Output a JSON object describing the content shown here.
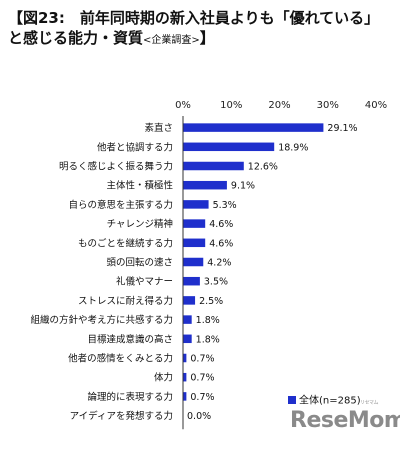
{
  "title": {
    "line1": "【図23:　前年同時期の新入社員よりも「優れている」",
    "line2": "と感じる能力・資質",
    "line2_sub": "<企業調査>",
    "line2_end": "】"
  },
  "watermark": {
    "text": "ReseMom",
    "kana": "リセマム"
  },
  "chart_data": {
    "type": "bar",
    "orientation": "horizontal",
    "title": "",
    "xlabel": "",
    "ylabel": "",
    "xlim": [
      0,
      40
    ],
    "ticks": [
      0,
      10,
      20,
      30,
      40
    ],
    "tick_suffix": "%",
    "bar_color": "#1f2fcc",
    "grid": false,
    "categories": [
      "素直さ",
      "他者と協調する力",
      "明るく感じよく振る舞う力",
      "主体性・積極性",
      "自らの意思を主張する力",
      "チャレンジ精神",
      "ものごとを継続する力",
      "頭の回転の速さ",
      "礼儀やマナー",
      "ストレスに耐え得る力",
      "組織の方針や考え方に共感する力",
      "目標達成意識の高さ",
      "他者の感情をくみとる力",
      "体力",
      "論理的に表現する力",
      "アイディアを発想する力"
    ],
    "series": [
      {
        "name": "全体(n=285)",
        "values": [
          29.1,
          18.9,
          12.6,
          9.1,
          5.3,
          4.6,
          4.6,
          4.2,
          3.5,
          2.5,
          1.8,
          1.8,
          0.7,
          0.7,
          0.7,
          0.0
        ]
      }
    ],
    "value_labels": [
      "29.1%",
      "18.9%",
      "12.6%",
      "9.1%",
      "5.3%",
      "4.6%",
      "4.6%",
      "4.2%",
      "3.5%",
      "2.5%",
      "1.8%",
      "1.8%",
      "0.7%",
      "0.7%",
      "0.7%",
      "0.0%"
    ],
    "legend_position": "bottom-right"
  }
}
